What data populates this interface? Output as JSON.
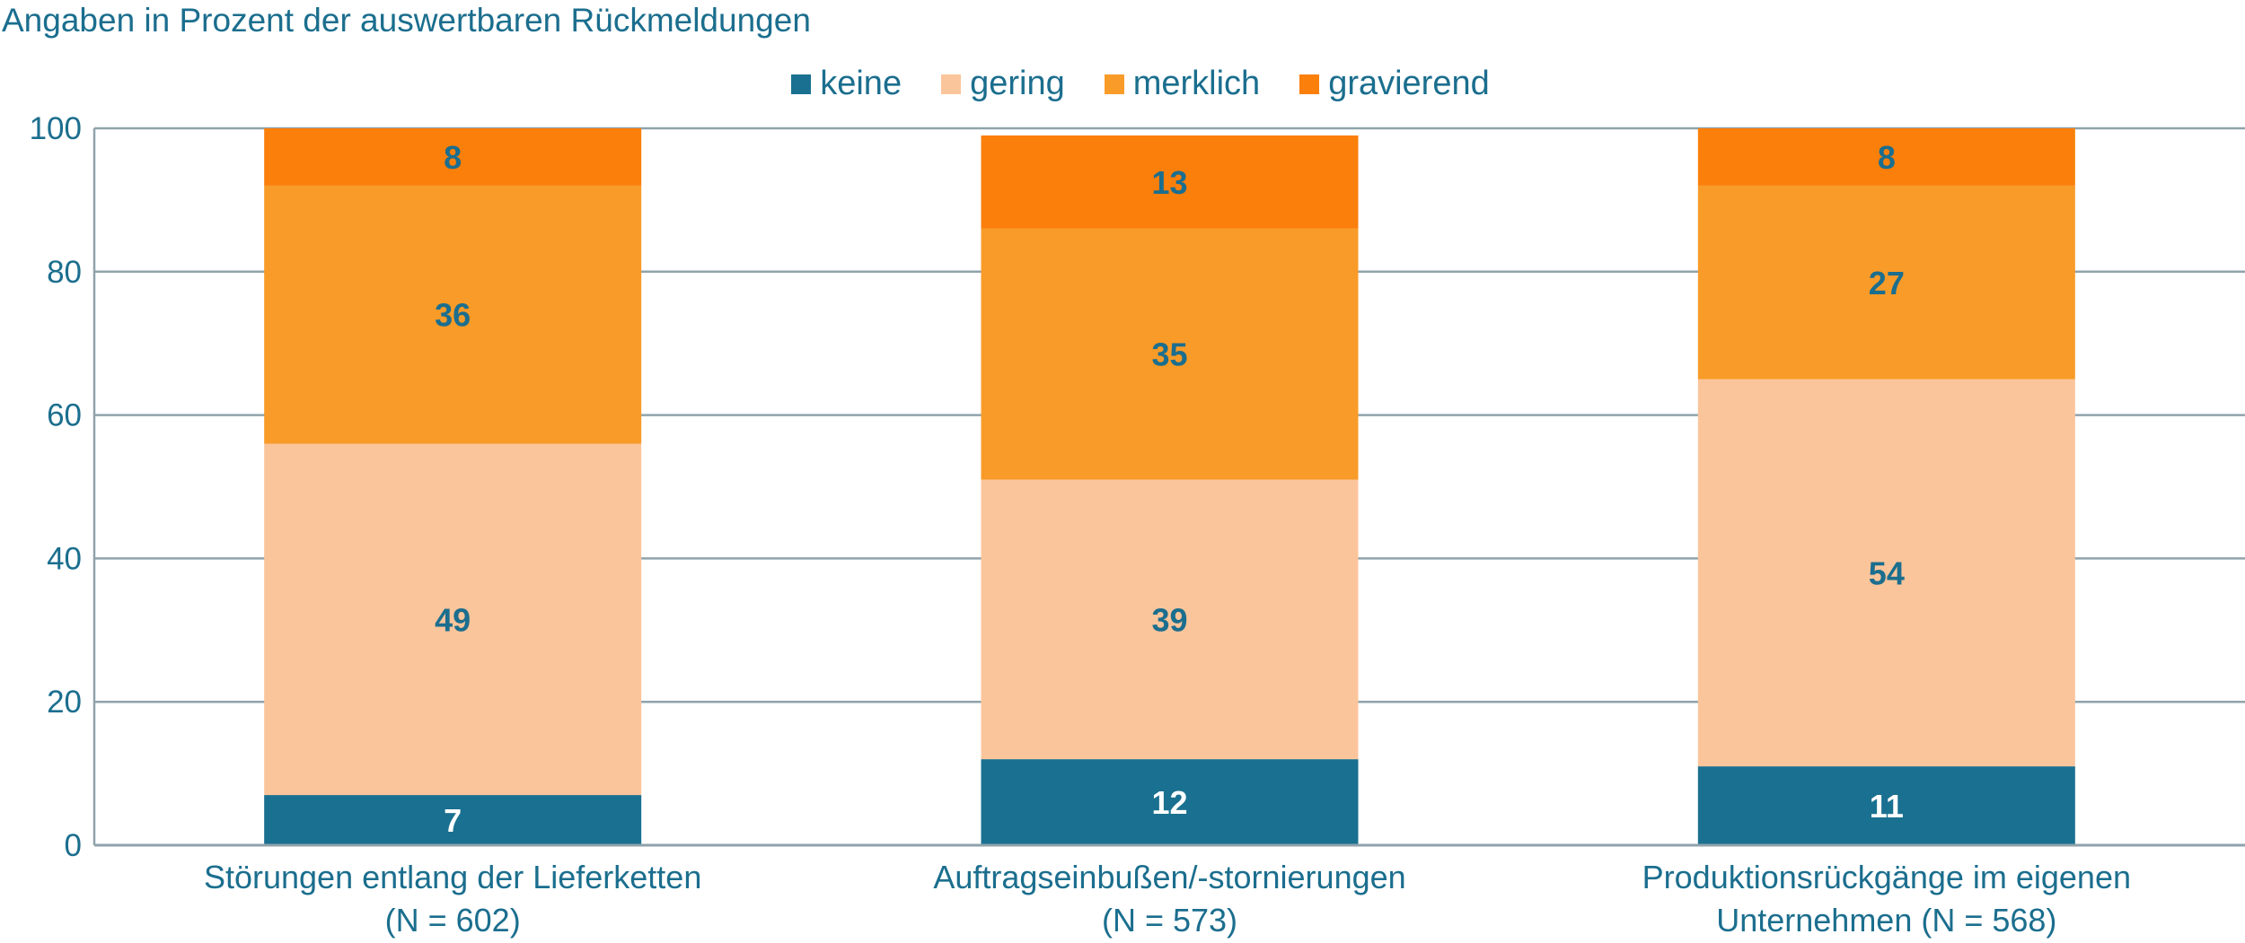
{
  "chart_data": {
    "type": "stacked-bar",
    "title": "Angaben in Prozent der auswertbaren Rückmeldungen",
    "categories": [
      [
        "Störungen entlang der Lieferketten",
        "(N = 602)"
      ],
      [
        "Auftragseinbußen/-stornierungen",
        "(N = 573)"
      ],
      [
        "Produktionsrückgänge im eigenen",
        "Unternehmen (N = 568)"
      ]
    ],
    "series": [
      {
        "name": "keine",
        "color": "#1a7090",
        "label_color": "#ffffff",
        "values": [
          7,
          12,
          11
        ]
      },
      {
        "name": "gering",
        "color": "#fbc59b",
        "label_color": "#1b6e8e",
        "values": [
          49,
          39,
          54
        ]
      },
      {
        "name": "merklich",
        "color": "#f89b28",
        "label_color": "#1b6e8e",
        "values": [
          36,
          35,
          27
        ]
      },
      {
        "name": "gravierend",
        "color": "#fb7f0b",
        "label_color": "#1b6e8e",
        "values": [
          8,
          13,
          8
        ]
      }
    ],
    "ylim": [
      0,
      100
    ],
    "yticks": [
      0,
      20,
      40,
      60,
      80,
      100
    ],
    "grid": true,
    "legend": "top-center",
    "xlabel": "",
    "ylabel": ""
  }
}
